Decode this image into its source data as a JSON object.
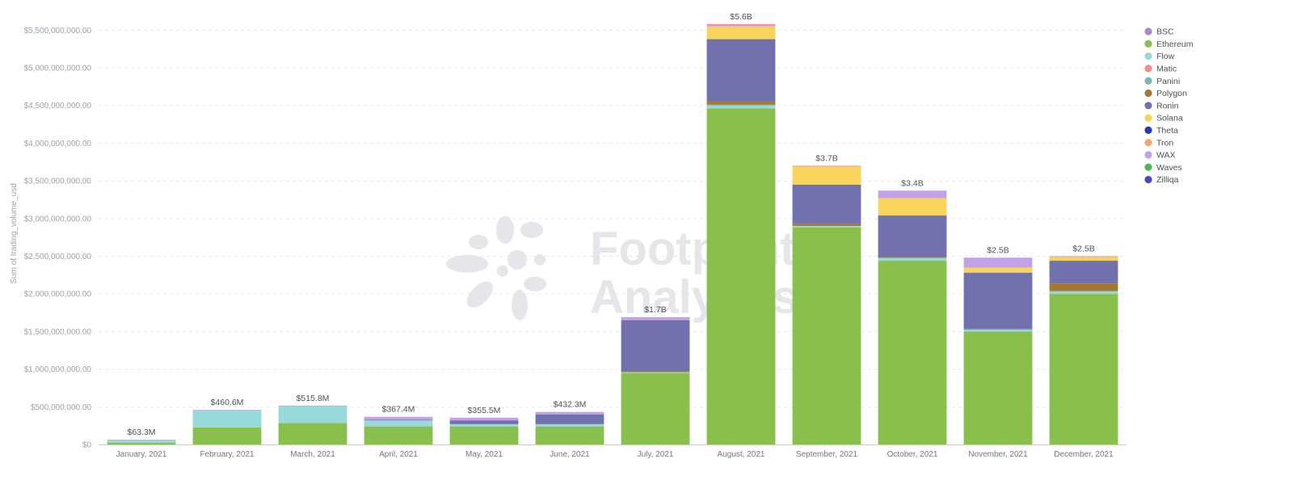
{
  "chart_data": {
    "type": "bar",
    "stacked": true,
    "ylabel": "Sum of trading_volume_usd",
    "ylim": [
      0,
      5600000000
    ],
    "yticks": [
      0,
      500000000,
      1000000000,
      1500000000,
      2000000000,
      2500000000,
      3000000000,
      3500000000,
      4000000000,
      4500000000,
      5000000000,
      5500000000
    ],
    "ytick_labels": [
      "$0",
      "$500,000,000.00",
      "$1,000,000,000.00",
      "$1,500,000,000.00",
      "$2,000,000,000.00",
      "$2,500,000,000.00",
      "$3,000,000,000.00",
      "$3,500,000,000.00",
      "$4,000,000,000.00",
      "$4,500,000,000.00",
      "$5,000,000,000.00",
      "$5,500,000,000.00"
    ],
    "grid": true,
    "legend_position": "right",
    "categories": [
      "January, 2021",
      "February, 2021",
      "March, 2021",
      "April, 2021",
      "May, 2021",
      "June, 2021",
      "July, 2021",
      "August, 2021",
      "September, 2021",
      "October, 2021",
      "November, 2021",
      "December, 2021"
    ],
    "totals": [
      "$63.3M",
      "$460.6M",
      "$515.8M",
      "$367.4M",
      "$355.5M",
      "$432.3M",
      "$1.7B",
      "$5.6B",
      "$3.7B",
      "$3.4B",
      "$2.5B",
      "$2.5B"
    ],
    "series": [
      {
        "name": "Ethereum",
        "color": "#88bf4d",
        "values": [
          25000000,
          225000000,
          285000000,
          240000000,
          240000000,
          240000000,
          950000000,
          4460000000,
          2880000000,
          2440000000,
          1500000000,
          2000000000
        ]
      },
      {
        "name": "Flow",
        "color": "#98d9d9",
        "values": [
          35000000,
          230000000,
          220000000,
          80000000,
          30000000,
          30000000,
          10000000,
          40000000,
          20000000,
          30000000,
          20000000,
          30000000
        ]
      },
      {
        "name": "Panini",
        "color": "#7fb2b5",
        "values": [
          0,
          0,
          0,
          0,
          0,
          0,
          0,
          10000000,
          0,
          10000000,
          10000000,
          10000000
        ]
      },
      {
        "name": "Polygon",
        "color": "#a6782f",
        "values": [
          0,
          0,
          0,
          0,
          0,
          0,
          10000000,
          40000000,
          30000000,
          10000000,
          10000000,
          100000000
        ]
      },
      {
        "name": "Ronin",
        "color": "#7172ad",
        "values": [
          0,
          0,
          0,
          10000000,
          50000000,
          130000000,
          680000000,
          830000000,
          520000000,
          550000000,
          740000000,
          300000000
        ]
      },
      {
        "name": "Solana",
        "color": "#f9d45c",
        "values": [
          0,
          0,
          0,
          0,
          0,
          0,
          0,
          170000000,
          240000000,
          230000000,
          70000000,
          50000000
        ]
      },
      {
        "name": "WAX",
        "color": "#c3a1e8",
        "values": [
          3300000,
          5600000,
          10800000,
          37400000,
          35500000,
          32300000,
          40000000,
          10000000,
          0,
          100000000,
          130000000,
          10000000
        ]
      },
      {
        "name": "Matic",
        "color": "#ef8c8c",
        "values": [
          0,
          0,
          0,
          0,
          0,
          0,
          0,
          20000000,
          10000000,
          0,
          0,
          0
        ]
      },
      {
        "name": "BSC",
        "color": "#a989c5",
        "values": [
          0,
          0,
          0,
          0,
          0,
          0,
          0,
          0,
          0,
          0,
          0,
          0
        ]
      },
      {
        "name": "Theta",
        "color": "#2c35c4",
        "values": [
          0,
          0,
          0,
          0,
          0,
          0,
          0,
          0,
          0,
          0,
          0,
          0
        ]
      },
      {
        "name": "Tron",
        "color": "#f2a86f",
        "values": [
          0,
          0,
          0,
          0,
          0,
          0,
          0,
          0,
          0,
          0,
          0,
          0
        ]
      },
      {
        "name": "Waves",
        "color": "#4bb85a",
        "values": [
          0,
          0,
          0,
          0,
          0,
          0,
          0,
          0,
          0,
          0,
          0,
          0
        ]
      },
      {
        "name": "Zilliqa",
        "color": "#5146c2",
        "values": [
          0,
          0,
          0,
          0,
          0,
          0,
          0,
          0,
          0,
          0,
          0,
          0
        ]
      }
    ],
    "legend": [
      {
        "name": "BSC",
        "color": "#a989c5"
      },
      {
        "name": "Ethereum",
        "color": "#88bf4d"
      },
      {
        "name": "Flow",
        "color": "#98d9d9"
      },
      {
        "name": "Matic",
        "color": "#ef8c8c"
      },
      {
        "name": "Panini",
        "color": "#7fb2b5"
      },
      {
        "name": "Polygon",
        "color": "#a6782f"
      },
      {
        "name": "Ronin",
        "color": "#7172ad"
      },
      {
        "name": "Solana",
        "color": "#f9d45c"
      },
      {
        "name": "Theta",
        "color": "#2c35c4"
      },
      {
        "name": "Tron",
        "color": "#f2a86f"
      },
      {
        "name": "WAX",
        "color": "#c3a1e8"
      },
      {
        "name": "Waves",
        "color": "#4bb85a"
      },
      {
        "name": "Zilliqa",
        "color": "#5146c2"
      }
    ]
  },
  "watermark": {
    "line1": "Footprint",
    "line2": "Analytics"
  }
}
